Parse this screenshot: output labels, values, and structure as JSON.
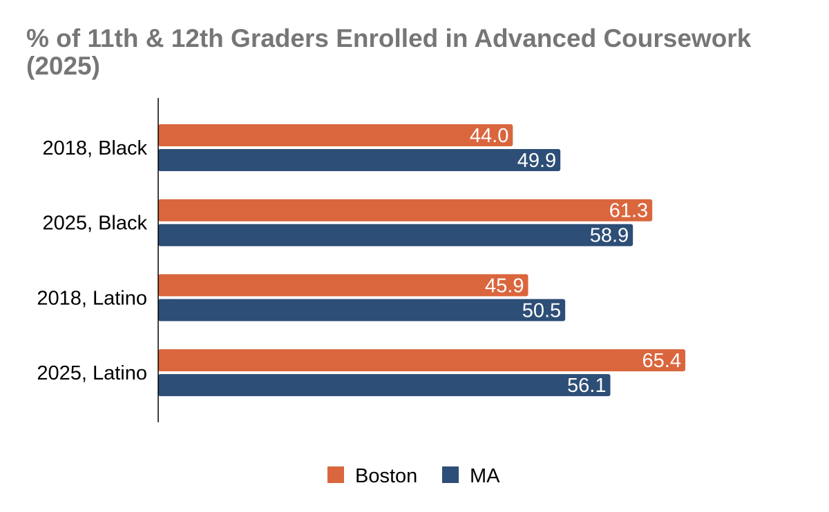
{
  "chart_data": {
    "type": "bar",
    "orientation": "horizontal",
    "title": "% of 11th & 12th Graders Enrolled in Advanced Coursework (2025)",
    "categories": [
      "2018, Black",
      "2025, Black",
      "2018, Latino",
      "2025, Latino"
    ],
    "series": [
      {
        "name": "Boston",
        "color": "#DA663D",
        "values": [
          44.0,
          61.3,
          45.9,
          65.4
        ],
        "labels": [
          "44.0",
          "61.3",
          "45.9",
          "65.4"
        ]
      },
      {
        "name": "MA",
        "color": "#2D4E76",
        "values": [
          49.9,
          58.9,
          50.5,
          56.1
        ],
        "labels": [
          "49.9",
          "58.9",
          "50.5",
          "56.1"
        ]
      }
    ],
    "xlim": [
      0,
      80
    ],
    "xlabel": "",
    "ylabel": "",
    "grid": false,
    "legend": "bottom-center"
  }
}
